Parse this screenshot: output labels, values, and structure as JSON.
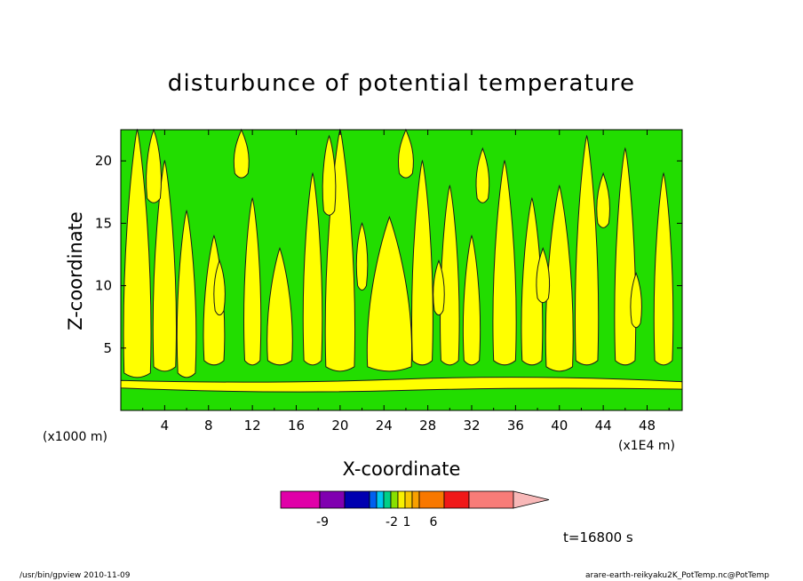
{
  "chart_data": {
    "type": "heatmap",
    "title": "disturbunce of potential temperature",
    "xlabel": "X-coordinate",
    "ylabel": "Z-coordinate",
    "x_unit": "(x1E4 m)",
    "y_unit": "(x1000 m)",
    "x_ticks": [
      "4",
      "8",
      "12",
      "16",
      "20",
      "24",
      "28",
      "32",
      "36",
      "40",
      "44",
      "48"
    ],
    "y_ticks": [
      "5",
      "10",
      "15",
      "20"
    ],
    "xlim": [
      0,
      51.2
    ],
    "ylim": [
      0,
      22.5
    ],
    "colorbar": {
      "colors": [
        "#e000a8",
        "#8000b0",
        "#0000b0",
        "#0060f0",
        "#00c8f0",
        "#00d088",
        "#88e000",
        "#f8f000",
        "#f8c800",
        "#f8a000",
        "#f87800",
        "#f01818",
        "#f87c78",
        "#f8b8b8"
      ],
      "labels": [
        "-9",
        "-2",
        "1",
        "6"
      ]
    },
    "fill_colors": {
      "background_level": "#22dd00",
      "positive_level": "#ffff00",
      "contour": "#1a1a1a"
    }
  },
  "annotations": {
    "time": "t=16800 s",
    "footer_left": "/usr/bin/gpview  2010-11-09",
    "footer_right": "arare-earth-reikyaku2K_PotTemp.nc@PotTemp"
  }
}
